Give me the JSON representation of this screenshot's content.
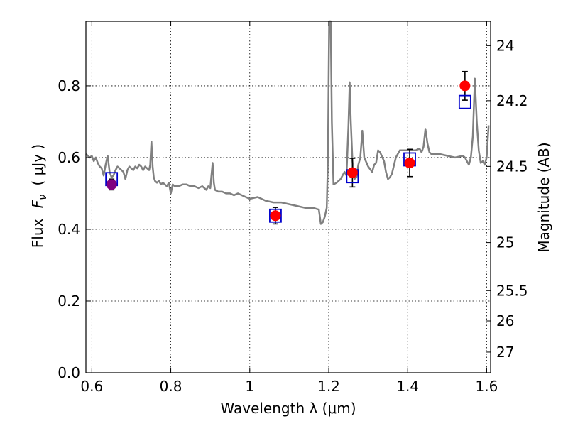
{
  "chart_data": {
    "type": "scatter",
    "xlabel": "Wavelength  λ (μm)",
    "ylabel_prefix": "Flux",
    "ylabel_var": "F",
    "ylabel_sub": "ν",
    "ylabel_unit": "( μJy )",
    "y2label": "Magnitude (AB)",
    "xlim": [
      0.585,
      1.61
    ],
    "ylim": [
      0.0,
      0.98
    ],
    "grid": true,
    "x_ticks": [
      0.6,
      0.8,
      1.0,
      1.2,
      1.4,
      1.6
    ],
    "x_tick_labels": [
      "0.6",
      "0.8",
      "1",
      "1.2",
      "1.4",
      "1.6"
    ],
    "y_ticks": [
      0.0,
      0.2,
      0.4,
      0.6,
      0.8
    ],
    "y_tick_labels": [
      "0.0",
      "0.2",
      "0.4",
      "0.6",
      "0.8"
    ],
    "y2_ticks": [
      {
        "label": "24",
        "mag": 24.0
      },
      {
        "label": "24.2",
        "mag": 24.2
      },
      {
        "label": "24.5",
        "mag": 24.5
      },
      {
        "label": "25",
        "mag": 25.0
      },
      {
        "label": "25.5",
        "mag": 25.5
      },
      {
        "label": "26",
        "mag": 26.0
      },
      {
        "label": "27",
        "mag": 27.0
      }
    ],
    "series": [
      {
        "type": "line",
        "color": "#808080",
        "points": [
          [
            0.585,
            0.61
          ],
          [
            0.595,
            0.6
          ],
          [
            0.6,
            0.605
          ],
          [
            0.605,
            0.59
          ],
          [
            0.61,
            0.6
          ],
          [
            0.615,
            0.585
          ],
          [
            0.62,
            0.575
          ],
          [
            0.625,
            0.57
          ],
          [
            0.63,
            0.55
          ],
          [
            0.635,
            0.58
          ],
          [
            0.64,
            0.605
          ],
          [
            0.645,
            0.56
          ],
          [
            0.65,
            0.545
          ],
          [
            0.655,
            0.55
          ],
          [
            0.66,
            0.565
          ],
          [
            0.665,
            0.575
          ],
          [
            0.67,
            0.57
          ],
          [
            0.675,
            0.565
          ],
          [
            0.68,
            0.56
          ],
          [
            0.685,
            0.54
          ],
          [
            0.69,
            0.565
          ],
          [
            0.695,
            0.575
          ],
          [
            0.7,
            0.57
          ],
          [
            0.705,
            0.565
          ],
          [
            0.71,
            0.575
          ],
          [
            0.715,
            0.57
          ],
          [
            0.72,
            0.58
          ],
          [
            0.725,
            0.575
          ],
          [
            0.73,
            0.565
          ],
          [
            0.735,
            0.575
          ],
          [
            0.74,
            0.57
          ],
          [
            0.745,
            0.565
          ],
          [
            0.748,
            0.58
          ],
          [
            0.751,
            0.645
          ],
          [
            0.754,
            0.575
          ],
          [
            0.757,
            0.545
          ],
          [
            0.76,
            0.535
          ],
          [
            0.765,
            0.53
          ],
          [
            0.77,
            0.535
          ],
          [
            0.775,
            0.525
          ],
          [
            0.78,
            0.53
          ],
          [
            0.785,
            0.525
          ],
          [
            0.79,
            0.52
          ],
          [
            0.795,
            0.53
          ],
          [
            0.8,
            0.5
          ],
          [
            0.805,
            0.525
          ],
          [
            0.81,
            0.52
          ],
          [
            0.82,
            0.52
          ],
          [
            0.83,
            0.525
          ],
          [
            0.84,
            0.525
          ],
          [
            0.85,
            0.52
          ],
          [
            0.86,
            0.52
          ],
          [
            0.87,
            0.515
          ],
          [
            0.88,
            0.52
          ],
          [
            0.89,
            0.51
          ],
          [
            0.895,
            0.52
          ],
          [
            0.9,
            0.515
          ],
          [
            0.903,
            0.55
          ],
          [
            0.906,
            0.585
          ],
          [
            0.909,
            0.53
          ],
          [
            0.912,
            0.51
          ],
          [
            0.92,
            0.505
          ],
          [
            0.93,
            0.505
          ],
          [
            0.94,
            0.5
          ],
          [
            0.95,
            0.5
          ],
          [
            0.96,
            0.495
          ],
          [
            0.97,
            0.5
          ],
          [
            0.98,
            0.495
          ],
          [
            0.99,
            0.49
          ],
          [
            1.0,
            0.485
          ],
          [
            1.02,
            0.49
          ],
          [
            1.04,
            0.48
          ],
          [
            1.06,
            0.475
          ],
          [
            1.08,
            0.475
          ],
          [
            1.1,
            0.47
          ],
          [
            1.12,
            0.465
          ],
          [
            1.14,
            0.46
          ],
          [
            1.16,
            0.46
          ],
          [
            1.175,
            0.455
          ],
          [
            1.18,
            0.415
          ],
          [
            1.185,
            0.42
          ],
          [
            1.19,
            0.435
          ],
          [
            1.195,
            0.46
          ],
          [
            1.198,
            0.6
          ],
          [
            1.201,
            0.98
          ],
          [
            1.205,
            0.98
          ],
          [
            1.208,
            0.7
          ],
          [
            1.212,
            0.525
          ],
          [
            1.22,
            0.53
          ],
          [
            1.23,
            0.54
          ],
          [
            1.24,
            0.56
          ],
          [
            1.245,
            0.55
          ],
          [
            1.25,
            0.69
          ],
          [
            1.253,
            0.81
          ],
          [
            1.256,
            0.7
          ],
          [
            1.26,
            0.59
          ],
          [
            1.265,
            0.54
          ],
          [
            1.27,
            0.545
          ],
          [
            1.275,
            0.58
          ],
          [
            1.28,
            0.6
          ],
          [
            1.285,
            0.675
          ],
          [
            1.29,
            0.6
          ],
          [
            1.3,
            0.575
          ],
          [
            1.31,
            0.56
          ],
          [
            1.315,
            0.58
          ],
          [
            1.32,
            0.585
          ],
          [
            1.325,
            0.62
          ],
          [
            1.33,
            0.615
          ],
          [
            1.34,
            0.59
          ],
          [
            1.345,
            0.56
          ],
          [
            1.35,
            0.54
          ],
          [
            1.355,
            0.545
          ],
          [
            1.36,
            0.555
          ],
          [
            1.37,
            0.6
          ],
          [
            1.38,
            0.62
          ],
          [
            1.4,
            0.62
          ],
          [
            1.42,
            0.62
          ],
          [
            1.43,
            0.625
          ],
          [
            1.435,
            0.615
          ],
          [
            1.44,
            0.63
          ],
          [
            1.445,
            0.68
          ],
          [
            1.45,
            0.64
          ],
          [
            1.455,
            0.615
          ],
          [
            1.46,
            0.61
          ],
          [
            1.48,
            0.61
          ],
          [
            1.5,
            0.605
          ],
          [
            1.52,
            0.6
          ],
          [
            1.54,
            0.605
          ],
          [
            1.545,
            0.6
          ],
          [
            1.55,
            0.59
          ],
          [
            1.555,
            0.58
          ],
          [
            1.56,
            0.6
          ],
          [
            1.565,
            0.66
          ],
          [
            1.57,
            0.82
          ],
          [
            1.575,
            0.7
          ],
          [
            1.58,
            0.62
          ],
          [
            1.585,
            0.585
          ],
          [
            1.59,
            0.59
          ],
          [
            1.595,
            0.58
          ],
          [
            1.6,
            0.6
          ],
          [
            1.605,
            0.69
          ]
        ]
      },
      {
        "type": "errorbar",
        "color": "#000000",
        "points": [
          {
            "x": 0.65,
            "y": 0.525,
            "err": 0.015
          },
          {
            "x": 1.065,
            "y": 0.438,
            "err": 0.023
          },
          {
            "x": 1.26,
            "y": 0.558,
            "err": 0.04
          },
          {
            "x": 1.405,
            "y": 0.585,
            "err": 0.038
          },
          {
            "x": 1.545,
            "y": 0.8,
            "err": 0.04
          }
        ]
      },
      {
        "type": "scatter",
        "marker": "circle",
        "color": "#ff0000",
        "points": [
          [
            0.65,
            0.525
          ],
          [
            1.065,
            0.438
          ],
          [
            1.26,
            0.558
          ],
          [
            1.405,
            0.585
          ],
          [
            1.545,
            0.8
          ]
        ]
      },
      {
        "type": "scatter",
        "marker": "square-open",
        "color": "#0000cc",
        "points": [
          [
            0.65,
            0.54
          ],
          [
            1.065,
            0.438
          ],
          [
            1.26,
            0.548
          ],
          [
            1.405,
            0.595
          ],
          [
            1.545,
            0.755
          ]
        ]
      }
    ],
    "overlap_color": "#800080"
  }
}
